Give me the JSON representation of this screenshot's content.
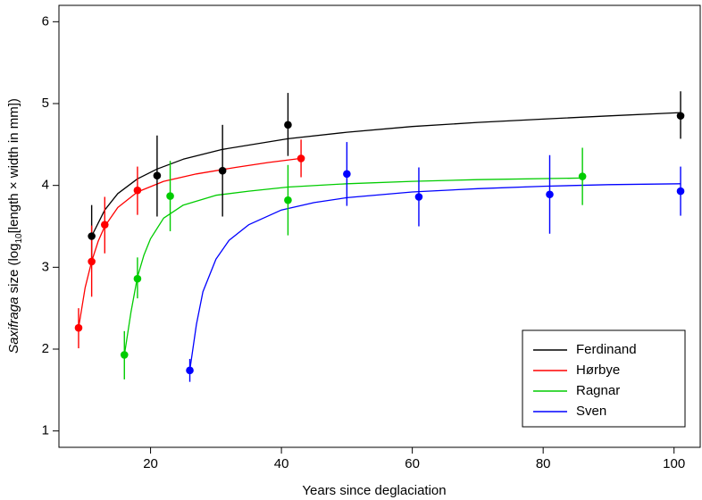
{
  "chart_data": {
    "type": "scatter",
    "xlabel": "Years since deglaciation",
    "ylabel": {
      "italic": "Saxifraga",
      "pre": " size (log",
      "sub": "10",
      "post": "[length × width in mm])"
    },
    "xlim": [
      6,
      104
    ],
    "ylim": [
      0.8,
      6.2
    ],
    "xticks": [
      20,
      40,
      60,
      80,
      100
    ],
    "yticks": [
      1,
      2,
      3,
      4,
      5,
      6
    ],
    "legend_position": "bottom-right",
    "grid": false,
    "series": [
      {
        "name": "Ferdinand",
        "color": "#000000",
        "points": [
          {
            "x": 11,
            "y": 3.38,
            "lo": 3.02,
            "hi": 3.76
          },
          {
            "x": 21,
            "y": 4.12,
            "lo": 3.62,
            "hi": 4.61
          },
          {
            "x": 31,
            "y": 4.18,
            "lo": 3.62,
            "hi": 4.74
          },
          {
            "x": 41,
            "y": 4.74,
            "lo": 4.36,
            "hi": 5.13
          },
          {
            "x": 101,
            "y": 4.85,
            "lo": 4.57,
            "hi": 5.15
          }
        ],
        "curve": [
          [
            11,
            3.38
          ],
          [
            13,
            3.7
          ],
          [
            15,
            3.9
          ],
          [
            18,
            4.08
          ],
          [
            21,
            4.2
          ],
          [
            25,
            4.32
          ],
          [
            31,
            4.44
          ],
          [
            41,
            4.57
          ],
          [
            50,
            4.65
          ],
          [
            60,
            4.72
          ],
          [
            70,
            4.77
          ],
          [
            80,
            4.81
          ],
          [
            90,
            4.85
          ],
          [
            101,
            4.89
          ]
        ]
      },
      {
        "name": "Hørbye",
        "color": "#ff0000",
        "points": [
          {
            "x": 9,
            "y": 2.26,
            "lo": 2.01,
            "hi": 2.5
          },
          {
            "x": 11,
            "y": 3.07,
            "lo": 2.64,
            "hi": 3.51
          },
          {
            "x": 13,
            "y": 3.52,
            "lo": 3.17,
            "hi": 3.86
          },
          {
            "x": 18,
            "y": 3.94,
            "lo": 3.64,
            "hi": 4.23
          },
          {
            "x": 43,
            "y": 4.33,
            "lo": 4.1,
            "hi": 4.56
          }
        ],
        "curve": [
          [
            9,
            2.26
          ],
          [
            10,
            2.75
          ],
          [
            11,
            3.07
          ],
          [
            12,
            3.32
          ],
          [
            13,
            3.5
          ],
          [
            15,
            3.73
          ],
          [
            18,
            3.92
          ],
          [
            22,
            4.05
          ],
          [
            27,
            4.14
          ],
          [
            33,
            4.22
          ],
          [
            38,
            4.28
          ],
          [
            43,
            4.33
          ]
        ]
      },
      {
        "name": "Ragnar",
        "color": "#00cc00",
        "points": [
          {
            "x": 16,
            "y": 1.93,
            "lo": 1.63,
            "hi": 2.22
          },
          {
            "x": 18,
            "y": 2.86,
            "lo": 2.62,
            "hi": 3.12
          },
          {
            "x": 23,
            "y": 3.87,
            "lo": 3.44,
            "hi": 4.3
          },
          {
            "x": 41,
            "y": 3.82,
            "lo": 3.39,
            "hi": 4.25
          },
          {
            "x": 86,
            "y": 4.11,
            "lo": 3.76,
            "hi": 4.46
          }
        ],
        "curve": [
          [
            16,
            1.93
          ],
          [
            17,
            2.45
          ],
          [
            18,
            2.88
          ],
          [
            19,
            3.15
          ],
          [
            20,
            3.35
          ],
          [
            22,
            3.6
          ],
          [
            25,
            3.76
          ],
          [
            30,
            3.88
          ],
          [
            35,
            3.93
          ],
          [
            41,
            3.98
          ],
          [
            50,
            4.02
          ],
          [
            60,
            4.05
          ],
          [
            70,
            4.07
          ],
          [
            86,
            4.09
          ]
        ]
      },
      {
        "name": "Sven",
        "color": "#0000ff",
        "points": [
          {
            "x": 26,
            "y": 1.74,
            "lo": 1.6,
            "hi": 1.88
          },
          {
            "x": 50,
            "y": 4.14,
            "lo": 3.75,
            "hi": 4.53
          },
          {
            "x": 61,
            "y": 3.86,
            "lo": 3.5,
            "hi": 4.22
          },
          {
            "x": 81,
            "y": 3.89,
            "lo": 3.41,
            "hi": 4.37
          },
          {
            "x": 101,
            "y": 3.93,
            "lo": 3.63,
            "hi": 4.23
          }
        ],
        "curve": [
          [
            26,
            1.74
          ],
          [
            27,
            2.3
          ],
          [
            28,
            2.7
          ],
          [
            30,
            3.1
          ],
          [
            32,
            3.33
          ],
          [
            35,
            3.52
          ],
          [
            40,
            3.7
          ],
          [
            45,
            3.79
          ],
          [
            50,
            3.85
          ],
          [
            60,
            3.92
          ],
          [
            70,
            3.96
          ],
          [
            80,
            3.99
          ],
          [
            90,
            4.01
          ],
          [
            101,
            4.02
          ]
        ]
      }
    ]
  }
}
